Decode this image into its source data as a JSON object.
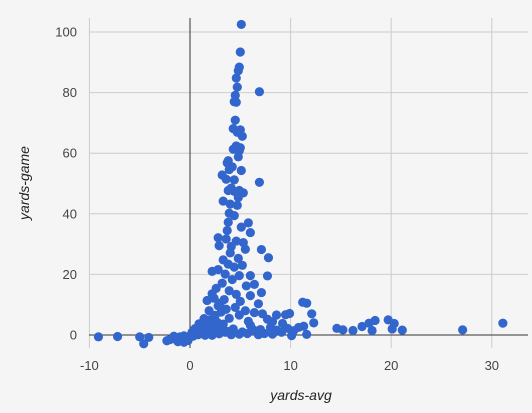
{
  "colors": {
    "background": "#f5f5f5",
    "gridline": "#cccccc",
    "zero_axis": "#333333",
    "point": "#3366cc"
  },
  "chart_data": {
    "type": "scatter",
    "title": "",
    "xlabel": "yards-avg",
    "ylabel": "yards-game",
    "xlim": [
      -10,
      32
    ],
    "ylim": [
      -5,
      104
    ],
    "x_ticks": [
      -10,
      0,
      10,
      20,
      30
    ],
    "y_ticks": [
      0,
      20,
      40,
      60,
      80,
      100
    ],
    "x_tick_labels": [
      "-10",
      "0",
      "10",
      "20",
      "30"
    ],
    "y_tick_labels": [
      "0",
      "20",
      "40",
      "60",
      "80",
      "100"
    ],
    "grid": true,
    "legend": "none",
    "series": [
      {
        "points": [
          [
            5.1,
            102.5
          ],
          [
            5.0,
            93.4
          ],
          [
            4.9,
            88.4
          ],
          [
            4.8,
            87.2
          ],
          [
            4.6,
            84.8
          ],
          [
            4.7,
            81.8
          ],
          [
            4.5,
            79.1
          ],
          [
            4.4,
            77.0
          ],
          [
            4.6,
            76.8
          ],
          [
            6.9,
            80.3
          ],
          [
            4.5,
            70.9
          ],
          [
            4.3,
            68.1
          ],
          [
            5.0,
            67.7
          ],
          [
            4.7,
            66.9
          ],
          [
            5.2,
            65.6
          ],
          [
            4.6,
            62.4
          ],
          [
            5.0,
            61.8
          ],
          [
            4.3,
            61.3
          ],
          [
            4.9,
            60.8
          ],
          [
            4.8,
            58.8
          ],
          [
            3.8,
            57.5
          ],
          [
            3.7,
            56.8
          ],
          [
            4.2,
            55.5
          ],
          [
            3.9,
            54.6
          ],
          [
            5.1,
            54.3
          ],
          [
            3.2,
            52.8
          ],
          [
            3.6,
            51.4
          ],
          [
            4.4,
            51.2
          ],
          [
            6.9,
            50.4
          ],
          [
            4.1,
            48.5
          ],
          [
            3.8,
            47.7
          ],
          [
            4.4,
            47.4
          ],
          [
            4.9,
            47.7
          ],
          [
            5.3,
            46.9
          ],
          [
            4.8,
            45.4
          ],
          [
            3.3,
            44.2
          ],
          [
            4.0,
            43.2
          ],
          [
            4.7,
            42.8
          ],
          [
            3.9,
            40.2
          ],
          [
            4.4,
            39.4
          ],
          [
            3.8,
            37.2
          ],
          [
            5.8,
            37.0
          ],
          [
            5.1,
            35.6
          ],
          [
            3.7,
            34.5
          ],
          [
            6.0,
            33.8
          ],
          [
            2.8,
            32.1
          ],
          [
            3.6,
            31.7
          ],
          [
            4.6,
            31.0
          ],
          [
            5.3,
            30.5
          ],
          [
            2.9,
            29.5
          ],
          [
            4.1,
            29.2
          ],
          [
            5.5,
            28.3
          ],
          [
            7.1,
            28.2
          ],
          [
            4.0,
            27.1
          ],
          [
            4.8,
            25.3
          ],
          [
            3.3,
            24.8
          ],
          [
            3.8,
            23.4
          ],
          [
            5.2,
            23.0
          ],
          [
            7.8,
            25.5
          ],
          [
            4.4,
            22.4
          ],
          [
            2.8,
            21.6
          ],
          [
            2.2,
            21.0
          ],
          [
            3.5,
            20.1
          ],
          [
            4.9,
            19.6
          ],
          [
            6.0,
            19.6
          ],
          [
            7.7,
            19.5
          ],
          [
            4.2,
            18.3
          ],
          [
            3.2,
            17.1
          ],
          [
            5.6,
            16.2
          ],
          [
            6.4,
            16.7
          ],
          [
            2.6,
            15.4
          ],
          [
            3.9,
            14.6
          ],
          [
            2.2,
            13.6
          ],
          [
            4.6,
            13.4
          ],
          [
            6.0,
            13.0
          ],
          [
            7.1,
            14.0
          ],
          [
            2.4,
            12.1
          ],
          [
            3.4,
            11.7
          ],
          [
            5.0,
            11.1
          ],
          [
            1.7,
            11.4
          ],
          [
            3.0,
            10.5
          ],
          [
            6.8,
            10.3
          ],
          [
            2.8,
            9.6
          ],
          [
            4.5,
            9.1
          ],
          [
            3.6,
            8.5
          ],
          [
            1.9,
            8.0
          ],
          [
            5.5,
            8.0
          ],
          [
            3.1,
            7.6
          ],
          [
            6.4,
            7.4
          ],
          [
            7.2,
            7.0
          ],
          [
            2.5,
            6.5
          ],
          [
            4.9,
            6.6
          ],
          [
            8.6,
            6.6
          ],
          [
            9.5,
            6.7
          ],
          [
            9.9,
            7.1
          ],
          [
            11.2,
            10.8
          ],
          [
            11.6,
            10.5
          ],
          [
            12.1,
            7.0
          ],
          [
            12.3,
            4.0
          ],
          [
            1.4,
            5.4
          ],
          [
            2.0,
            5.0
          ],
          [
            3.9,
            5.5
          ],
          [
            7.7,
            5.2
          ],
          [
            8.2,
            4.4
          ],
          [
            9.2,
            3.8
          ],
          [
            10.8,
            2.5
          ],
          [
            11.3,
            2.9
          ],
          [
            0.9,
            3.7
          ],
          [
            1.8,
            3.5
          ],
          [
            3.3,
            3.6
          ],
          [
            6.0,
            3.2
          ],
          [
            8.0,
            2.5
          ],
          [
            9.7,
            2.2
          ],
          [
            1.3,
            2.4
          ],
          [
            2.4,
            2.3
          ],
          [
            4.3,
            2.0
          ],
          [
            7.0,
            1.8
          ],
          [
            8.6,
            1.6
          ],
          [
            10.3,
            1.4
          ],
          [
            0.7,
            1.3
          ],
          [
            1.6,
            1.4
          ],
          [
            3.7,
            1.2
          ],
          [
            5.2,
            1.0
          ],
          [
            6.6,
            1.1
          ],
          [
            9.1,
            0.9
          ],
          [
            0.4,
            0.5
          ],
          [
            1.1,
            0.6
          ],
          [
            2.9,
            0.4
          ],
          [
            4.9,
            0.3
          ],
          [
            7.4,
            0.5
          ],
          [
            11.6,
            0.2
          ],
          [
            0.1,
            0.0
          ],
          [
            0.8,
            0.1
          ],
          [
            2.2,
            -0.1
          ],
          [
            4.1,
            0.1
          ],
          [
            -0.6,
            -0.3
          ],
          [
            -1.0,
            -0.6
          ],
          [
            -1.4,
            -0.9
          ],
          [
            -1.7,
            -1.2
          ],
          [
            -2.0,
            -1.5
          ],
          [
            -2.3,
            -1.9
          ],
          [
            -1.2,
            -2.2
          ],
          [
            -0.6,
            -2.4
          ],
          [
            -0.2,
            -1.8
          ],
          [
            -0.8,
            -1.0
          ],
          [
            -1.6,
            -0.4
          ],
          [
            -0.3,
            -0.8
          ],
          [
            0.3,
            -0.4
          ],
          [
            -9.1,
            -0.6
          ],
          [
            -7.2,
            -0.5
          ],
          [
            -5.0,
            -0.6
          ],
          [
            -4.1,
            -0.8
          ],
          [
            -4.6,
            -2.9
          ],
          [
            14.6,
            2.2
          ],
          [
            15.2,
            1.7
          ],
          [
            16.2,
            1.5
          ],
          [
            17.1,
            2.8
          ],
          [
            17.8,
            3.9
          ],
          [
            18.4,
            4.8
          ],
          [
            18.1,
            1.5
          ],
          [
            19.7,
            5.0
          ],
          [
            20.3,
            3.8
          ],
          [
            20.1,
            2.0
          ],
          [
            21.1,
            1.6
          ],
          [
            27.1,
            1.7
          ],
          [
            31.1,
            3.9
          ],
          [
            0.5,
            2.1
          ],
          [
            1.0,
            1.9
          ],
          [
            1.9,
            0.9
          ],
          [
            3.0,
            2.8
          ],
          [
            5.8,
            4.5
          ],
          [
            6.3,
            1.7
          ],
          [
            2.7,
            4.2
          ],
          [
            0.2,
            0.9
          ],
          [
            1.5,
            -0.1
          ],
          [
            3.5,
            0.9
          ],
          [
            5.7,
            0.5
          ],
          [
            8.2,
            0.3
          ],
          [
            10.1,
            -0.2
          ],
          [
            6.8,
            0.1
          ]
        ]
      }
    ]
  }
}
